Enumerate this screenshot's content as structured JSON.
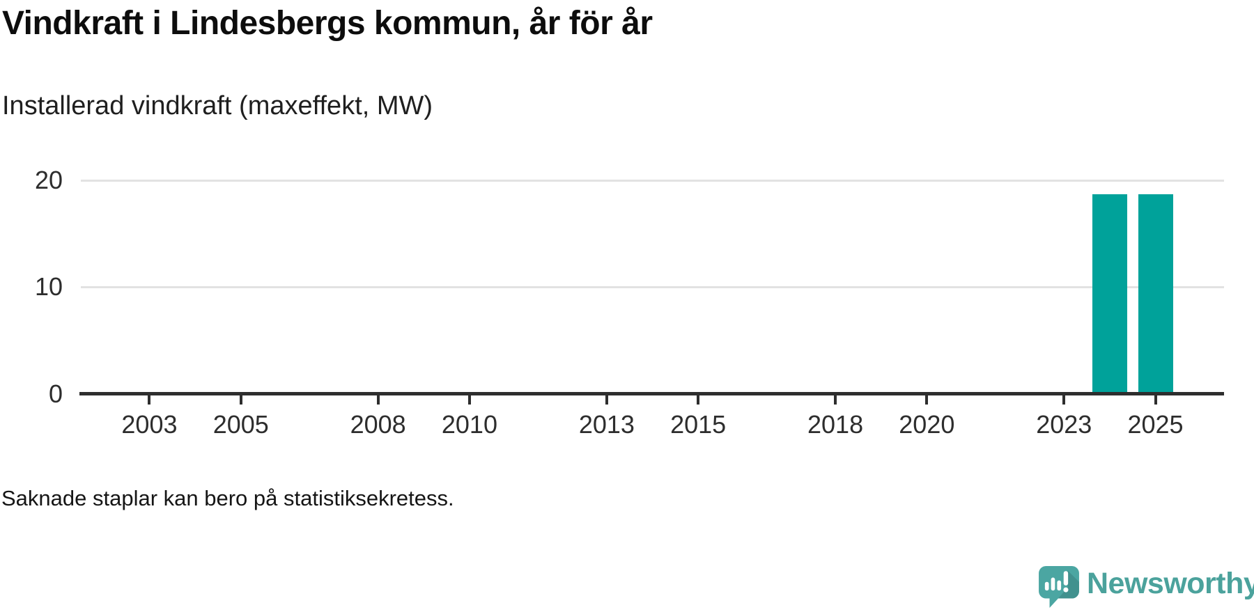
{
  "header": {
    "title": "Vindkraft i Lindesbergs kommun, år för år",
    "subtitle": "Installerad vindkraft (maxeffekt, MW)"
  },
  "note": {
    "text": "Saknade staplar kan bero på statistiksekretess."
  },
  "branding": {
    "name": "Newsworthy",
    "icon": "newsworthy-speech-bubble-bar-chart-icon",
    "text_color": "#4ba29c",
    "icon_color": "#4ba6a2",
    "icon_shade_color": "#41918e"
  },
  "colors": {
    "bar": "#00a29a",
    "axis": "#2e2e2e",
    "grid": "#e2e2e2"
  },
  "chart_data": {
    "type": "bar",
    "title": "Vindkraft i Lindesbergs kommun, år för år",
    "subtitle": "Installerad vindkraft (maxeffekt, MW)",
    "ylabel": "Installerad vindkraft (maxeffekt, MW)",
    "xlabel": "",
    "unit": "MW",
    "x_domain": [
      2002,
      2026
    ],
    "x_ticks": [
      2003,
      2005,
      2008,
      2010,
      2013,
      2015,
      2018,
      2020,
      2023,
      2025
    ],
    "ylim": [
      0,
      20
    ],
    "y_ticks": [
      0,
      10,
      20
    ],
    "grid": "horizontal",
    "legend": "none",
    "bars": [
      {
        "year": 2024,
        "value": 18.7
      },
      {
        "year": 2025,
        "value": 18.7
      }
    ],
    "missing_data_note": "Saknade staplar kan bero på statistiksekretess."
  }
}
